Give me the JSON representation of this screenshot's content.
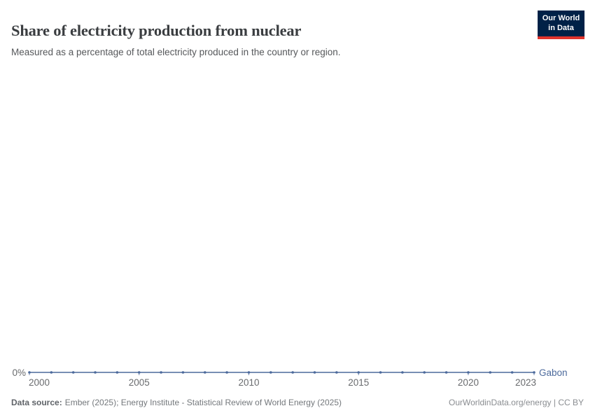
{
  "header": {
    "title": "Share of electricity production from nuclear",
    "subtitle": "Measured as a percentage of total electricity produced in the country or region.",
    "logo": {
      "line1": "Our World",
      "line2": "in Data",
      "background_color": "#002147",
      "accent_color": "#e0342c"
    }
  },
  "chart_data": {
    "type": "line",
    "title": "Share of electricity production from nuclear",
    "xlabel": "",
    "ylabel": "",
    "x": [
      2000,
      2001,
      2002,
      2003,
      2004,
      2005,
      2006,
      2007,
      2008,
      2009,
      2010,
      2011,
      2012,
      2013,
      2014,
      2015,
      2016,
      2017,
      2018,
      2019,
      2020,
      2021,
      2022,
      2023
    ],
    "series": [
      {
        "name": "Gabon",
        "color": "#4c6a9c",
        "values": [
          0,
          0,
          0,
          0,
          0,
          0,
          0,
          0,
          0,
          0,
          0,
          0,
          0,
          0,
          0,
          0,
          0,
          0,
          0,
          0,
          0,
          0,
          0,
          0
        ]
      }
    ],
    "x_tick_years": [
      2000,
      2005,
      2010,
      2015,
      2020,
      2023
    ],
    "y_tick_labels": [
      "0%"
    ],
    "y_zero_label": "0%",
    "ylim": [
      0,
      1
    ],
    "grid": false,
    "legend_position": "line-end-label",
    "axis_text_color": "#696b6e"
  },
  "footer": {
    "source_label": "Data source:",
    "source_text": "Ember (2025); Energy Institute - Statistical Review of World Energy (2025)",
    "license_text": "OurWorldinData.org/energy | CC BY"
  }
}
